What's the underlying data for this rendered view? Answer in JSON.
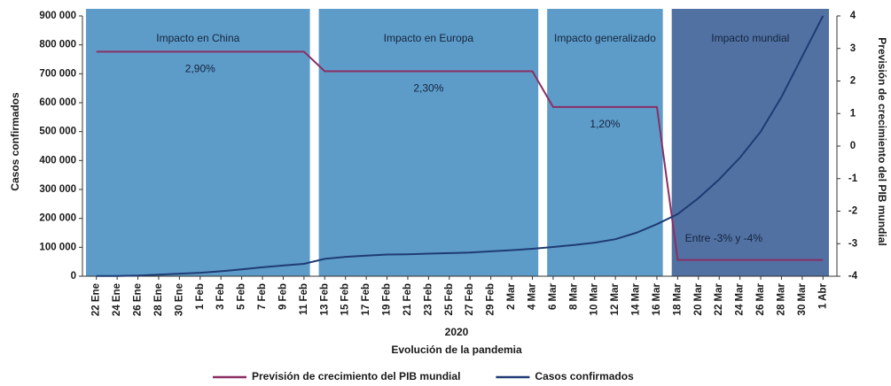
{
  "chart_data": {
    "type": "line",
    "categories": [
      "22 Ene",
      "24 Ene",
      "26 Ene",
      "28 Ene",
      "30 Ene",
      "1 Feb",
      "3 Feb",
      "5 Feb",
      "7 Feb",
      "9 Feb",
      "11 Feb",
      "13 Feb",
      "15 Feb",
      "17 Feb",
      "19 Feb",
      "21 Feb",
      "23 Feb",
      "25 Feb",
      "27 Feb",
      "29 Feb",
      "2 Mar",
      "4 Mar",
      "6 Mar",
      "8 Mar",
      "10 Mar",
      "12 Mar",
      "14 Mar",
      "16 Mar",
      "18 Mar",
      "20 Mar",
      "22 Mar",
      "24 Mar",
      "26 Mar",
      "28 Mar",
      "30 Mar",
      "1 Abr"
    ],
    "x_group_label": "2020",
    "xlabel": "Evolución de la pandemia",
    "ylabel": "Casos confirmados",
    "y2label": "Previsión de crecimiento del PIB mundial",
    "ylim": [
      0,
      900000
    ],
    "yticks": [
      {
        "value": 0,
        "label": "0"
      },
      {
        "value": 100000,
        "label": "100 000"
      },
      {
        "value": 200000,
        "label": "200 000"
      },
      {
        "value": 300000,
        "label": "300 000"
      },
      {
        "value": 400000,
        "label": "400 000"
      },
      {
        "value": 500000,
        "label": "500 000"
      },
      {
        "value": 600000,
        "label": "600 000"
      },
      {
        "value": 700000,
        "label": "700 000"
      },
      {
        "value": 800000,
        "label": "800 000"
      },
      {
        "value": 900000,
        "label": "900 000"
      }
    ],
    "y2lim": [
      -4,
      4
    ],
    "y2ticks": [
      -4,
      -3,
      -2,
      -1,
      0,
      1,
      2,
      3,
      4
    ],
    "regions": [
      {
        "label": "Impacto en China",
        "from": 0,
        "to": 10,
        "color": "#5d9cc9",
        "forecast_label": "2,90%"
      },
      {
        "label": "Impacto en Europa",
        "from": 11,
        "to": 21,
        "color": "#5d9cc9",
        "forecast_label": "2,30%"
      },
      {
        "label": "Impacto generalizado",
        "from": 22,
        "to": 27,
        "color": "#5d9cc9",
        "forecast_label": "1,20%"
      },
      {
        "label": "Impacto mundial",
        "from": 28,
        "to": 35,
        "color": "#5171a3",
        "forecast_label": "Entre -3% y -4%"
      }
    ],
    "series": [
      {
        "name": "Previsión de crecimiento del PIB mundial",
        "color": "#8a2f63",
        "axis": "y2",
        "values": [
          2.9,
          2.9,
          2.9,
          2.9,
          2.9,
          2.9,
          2.9,
          2.9,
          2.9,
          2.9,
          2.9,
          2.3,
          2.3,
          2.3,
          2.3,
          2.3,
          2.3,
          2.3,
          2.3,
          2.3,
          2.3,
          2.3,
          1.2,
          1.2,
          1.2,
          1.2,
          1.2,
          1.2,
          -3.5,
          -3.5,
          -3.5,
          -3.5,
          -3.5,
          -3.5,
          -3.5,
          -3.5
        ]
      },
      {
        "name": "Casos confirmados",
        "color": "#1f3b73",
        "values": [
          555,
          900,
          2000,
          5500,
          9000,
          12000,
          17000,
          24000,
          31000,
          37000,
          43000,
          60000,
          67000,
          71000,
          75000,
          76000,
          78000,
          80000,
          82000,
          86000,
          90000,
          95000,
          101000,
          108000,
          116000,
          128000,
          150000,
          180000,
          215000,
          270000,
          335000,
          410000,
          500000,
          620000,
          760000,
          900000
        ]
      }
    ]
  }
}
